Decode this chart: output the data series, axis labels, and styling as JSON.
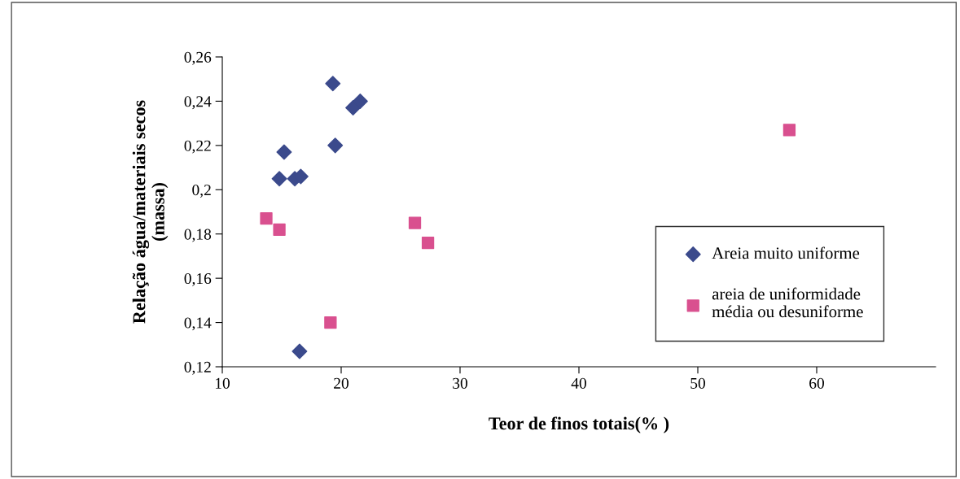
{
  "chart_data": {
    "type": "scatter",
    "xlabel": "Teor de finos totais(% )",
    "ylabel": "Relação água/materiais secos\n(massa)",
    "xlim": [
      10,
      70
    ],
    "xticks": [
      10,
      20,
      30,
      40,
      50,
      60
    ],
    "ylim": [
      0.12,
      0.26
    ],
    "yticks": [
      {
        "value": 0.12,
        "label": "0,12"
      },
      {
        "value": 0.14,
        "label": "0,14"
      },
      {
        "value": 0.16,
        "label": "0,16"
      },
      {
        "value": 0.18,
        "label": "0,18"
      },
      {
        "value": 0.2,
        "label": "0,2"
      },
      {
        "value": 0.22,
        "label": "0,22"
      },
      {
        "value": 0.24,
        "label": "0,24"
      },
      {
        "value": 0.26,
        "label": "0,26"
      }
    ],
    "grid": false,
    "legend": "right",
    "series": [
      {
        "name": "Areia muito uniforme",
        "color": "#3b4a8c",
        "marker": "diamond",
        "x": [
          19.3,
          15.2,
          14.8,
          16.1,
          16.6,
          19.5,
          21.0,
          21.6,
          16.5
        ],
        "values": [
          0.248,
          0.217,
          0.205,
          0.205,
          0.206,
          0.22,
          0.237,
          0.24,
          0.127
        ]
      },
      {
        "name": "areia de uniformidade\nmédia ou desuniforme",
        "color": "#d9508f",
        "marker": "square",
        "x": [
          13.7,
          14.8,
          26.2,
          27.3,
          19.1,
          57.7
        ],
        "values": [
          0.187,
          0.182,
          0.185,
          0.176,
          0.14,
          0.227
        ]
      }
    ]
  }
}
